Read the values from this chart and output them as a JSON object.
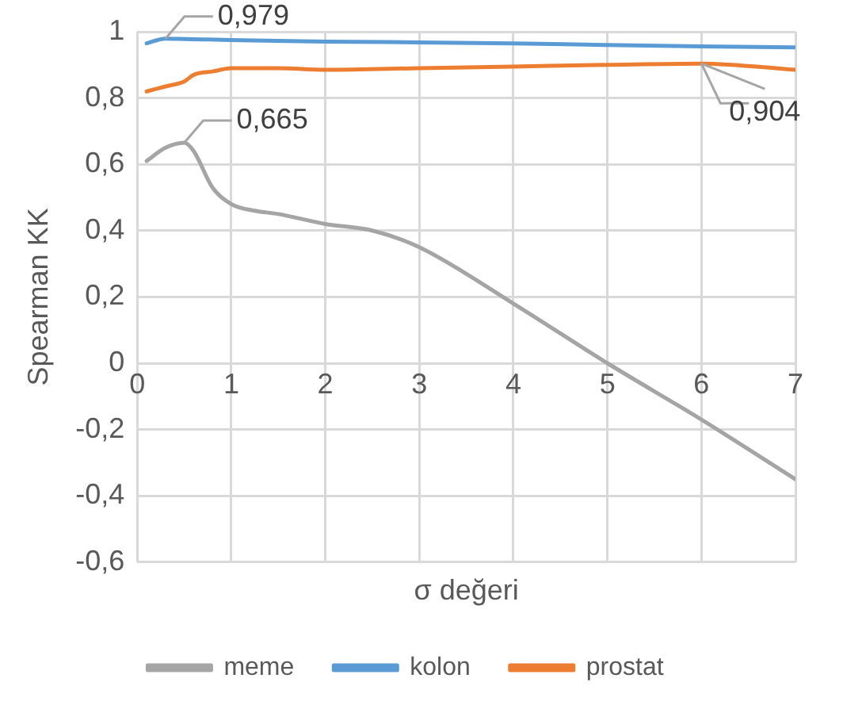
{
  "chart_data": {
    "type": "line",
    "xlabel": "σ değeri",
    "ylabel": "Spearman KK",
    "xlim": [
      0,
      7
    ],
    "xticks": [
      0,
      1,
      2,
      3,
      4,
      5,
      6,
      7
    ],
    "ylim": [
      -0.6,
      1
    ],
    "yticks": [
      {
        "value": -0.6,
        "label": "-0,6"
      },
      {
        "value": -0.4,
        "label": "-0,4"
      },
      {
        "value": -0.2,
        "label": "-0,2"
      },
      {
        "value": 0,
        "label": "0"
      },
      {
        "value": 0.2,
        "label": "0,2"
      },
      {
        "value": 0.4,
        "label": "0,4"
      },
      {
        "value": 0.6,
        "label": "0,6"
      },
      {
        "value": 0.8,
        "label": "0,8"
      },
      {
        "value": 1,
        "label": "1"
      }
    ],
    "grid": true,
    "legend": "bottom",
    "marker": "none",
    "line_style": "solid",
    "series": [
      {
        "name": "meme",
        "color": "#a5a5a5",
        "x": [
          0.1,
          0.3,
          0.5,
          0.6,
          0.8,
          1,
          1.25,
          1.5,
          2,
          2.5,
          3,
          4,
          5,
          6,
          7
        ],
        "values": [
          0.61,
          0.65,
          0.665,
          0.64,
          0.53,
          0.48,
          0.46,
          0.45,
          0.42,
          0.4,
          0.35,
          0.18,
          0,
          -0.17,
          -0.35
        ]
      },
      {
        "name": "kolon",
        "color": "#5b9bd5",
        "x": [
          0.1,
          0.3,
          0.5,
          1,
          2,
          3,
          4,
          5,
          6,
          7
        ],
        "values": [
          0.965,
          0.979,
          0.978,
          0.975,
          0.97,
          0.968,
          0.965,
          0.96,
          0.956,
          0.953
        ]
      },
      {
        "name": "prostat",
        "color": "#ed7d31",
        "x": [
          0.1,
          0.3,
          0.5,
          0.6,
          0.8,
          1,
          1.5,
          2,
          3,
          4,
          5,
          6,
          7
        ],
        "values": [
          0.82,
          0.835,
          0.85,
          0.87,
          0.88,
          0.89,
          0.89,
          0.885,
          0.89,
          0.895,
          0.9,
          0.904,
          0.885
        ]
      }
    ],
    "annotations": [
      {
        "text": "0,979",
        "x": 0.3,
        "y": 0.979
      },
      {
        "text": "0,665",
        "x": 0.5,
        "y": 0.665
      },
      {
        "text": "0,904",
        "x": 6,
        "y": 0.904
      }
    ]
  }
}
